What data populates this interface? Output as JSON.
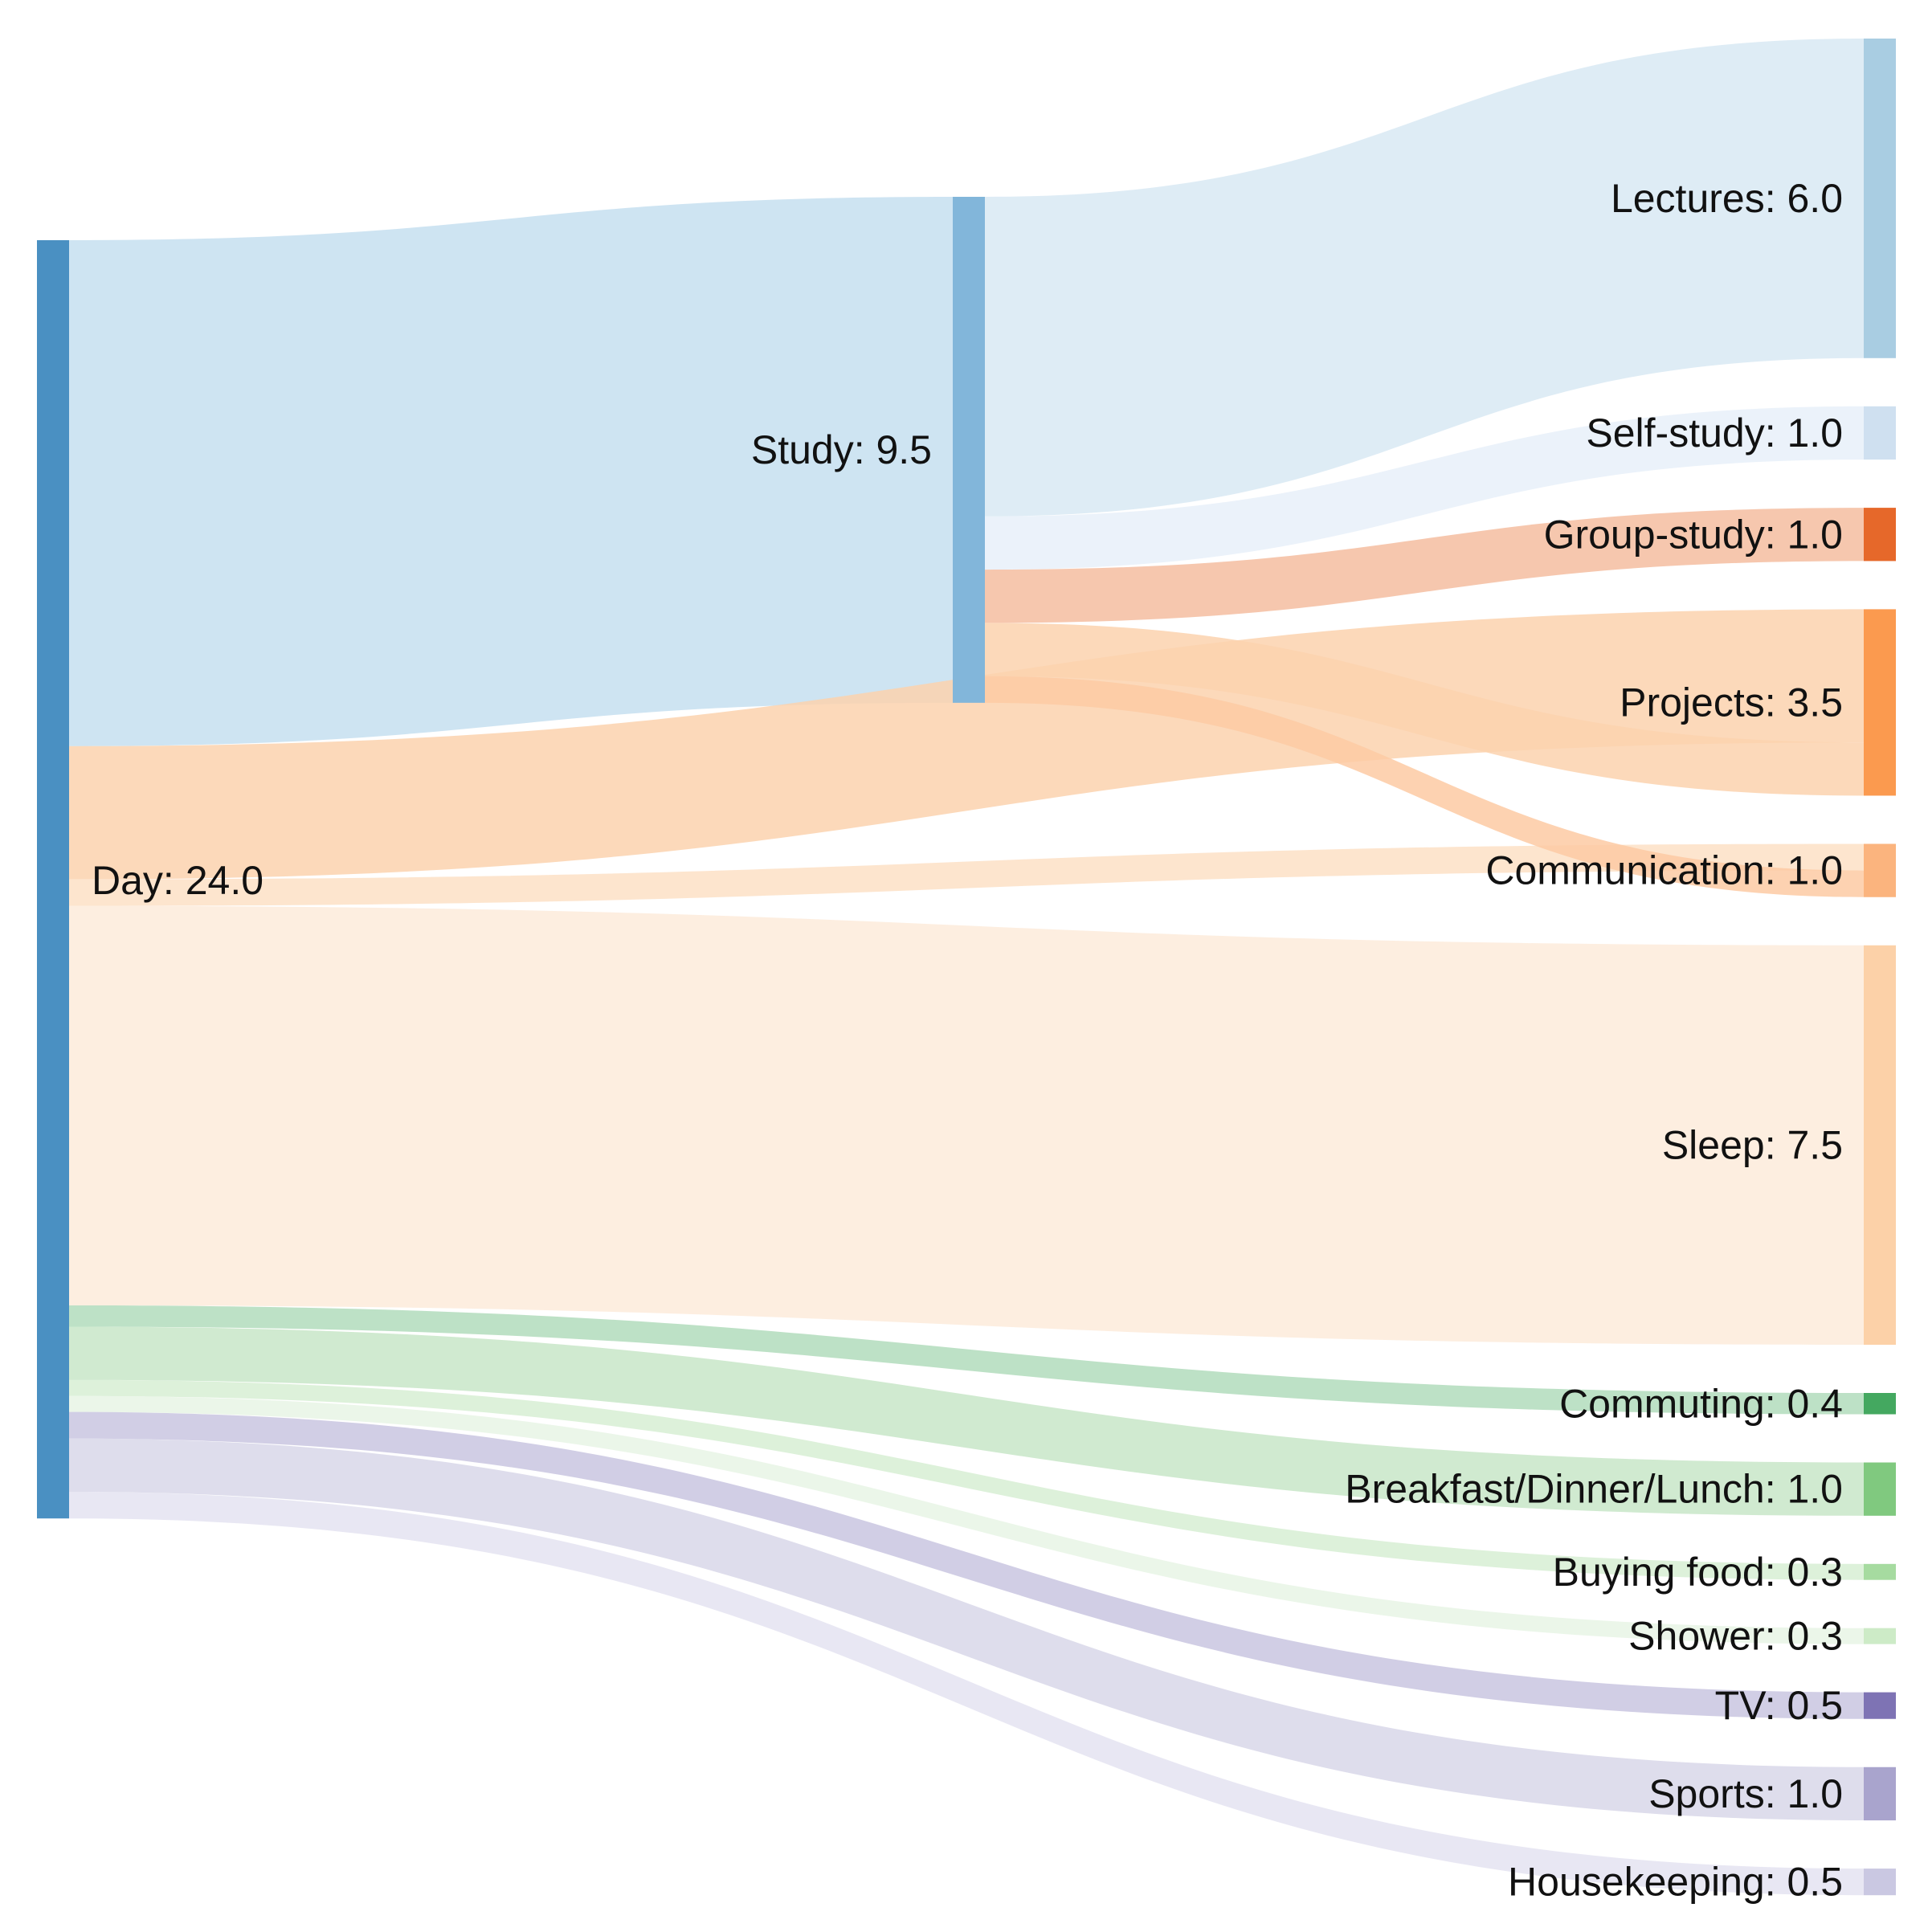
{
  "chart_data": {
    "type": "sankey",
    "nodes": [
      {
        "id": "day",
        "label": "Day: 24.0",
        "name": "Day",
        "value": 24.0,
        "column": 0,
        "color": "#4a90c2"
      },
      {
        "id": "study",
        "label": "Study: 9.5",
        "name": "Study",
        "value": 9.5,
        "column": 1,
        "color": "#82b6da"
      },
      {
        "id": "lectures",
        "label": "Lectures: 6.0",
        "name": "Lectures",
        "value": 6.0,
        "column": 2,
        "color": "#a9cde2"
      },
      {
        "id": "selfstudy",
        "label": "Self-study: 1.0",
        "name": "Self-study",
        "value": 1.0,
        "column": 2,
        "color": "#cfe0f0"
      },
      {
        "id": "groupstudy",
        "label": "Group-study: 1.0",
        "name": "Group-study",
        "value": 1.0,
        "column": 2,
        "color": "#e6682a"
      },
      {
        "id": "projects",
        "label": "Projects: 3.5",
        "name": "Projects",
        "value": 3.5,
        "column": 2,
        "color": "#fb9a4f"
      },
      {
        "id": "communication",
        "label": "Communication: 1.0",
        "name": "Communication",
        "value": 1.0,
        "column": 2,
        "color": "#fbb47e"
      },
      {
        "id": "sleep",
        "label": "Sleep: 7.5",
        "name": "Sleep",
        "value": 7.5,
        "column": 2,
        "color": "#fcd1a8"
      },
      {
        "id": "commuting",
        "label": "Commuting: 0.4",
        "name": "Commuting",
        "value": 0.4,
        "column": 2,
        "color": "#44a860"
      },
      {
        "id": "meals",
        "label": "Breakfast/Dinner/Lunch: 1.0",
        "name": "Breakfast/Dinner/Lunch",
        "value": 1.0,
        "column": 2,
        "color": "#80c97f"
      },
      {
        "id": "buyingfood",
        "label": "Buying food: 0.3",
        "name": "Buying food",
        "value": 0.3,
        "column": 2,
        "color": "#a6dba0"
      },
      {
        "id": "shower",
        "label": "Shower: 0.3",
        "name": "Shower",
        "value": 0.3,
        "column": 2,
        "color": "#cdebc7"
      },
      {
        "id": "tv",
        "label": "TV: 0.5",
        "name": "TV",
        "value": 0.5,
        "column": 2,
        "color": "#7e73b4"
      },
      {
        "id": "sports",
        "label": "Sports: 1.0",
        "name": "Sports",
        "value": 1.0,
        "column": 2,
        "color": "#a9a4cd"
      },
      {
        "id": "housekeeping",
        "label": "Housekeeping: 0.5",
        "name": "Housekeeping",
        "value": 0.5,
        "column": 2,
        "color": "#cac8e2"
      }
    ],
    "links": [
      {
        "source": "day",
        "target": "study",
        "value": 9.5,
        "color": "#c5dff0"
      },
      {
        "source": "day",
        "target": "projects",
        "value": 2.5,
        "color": "#fcd2ae"
      },
      {
        "source": "day",
        "target": "communication",
        "value": 0.5,
        "color": "#fde0c6"
      },
      {
        "source": "day",
        "target": "sleep",
        "value": 7.5,
        "color": "#fdebdb"
      },
      {
        "source": "day",
        "target": "commuting",
        "value": 0.4,
        "color": "#b1dcbc"
      },
      {
        "source": "day",
        "target": "meals",
        "value": 1.0,
        "color": "#c8e6c8"
      },
      {
        "source": "day",
        "target": "buyingfood",
        "value": 0.3,
        "color": "#d7efd4"
      },
      {
        "source": "day",
        "target": "shower",
        "value": 0.3,
        "color": "#e8f5e5"
      },
      {
        "source": "day",
        "target": "tv",
        "value": 0.5,
        "color": "#c9c5e0"
      },
      {
        "source": "day",
        "target": "sports",
        "value": 1.0,
        "color": "#d8d7e9"
      },
      {
        "source": "day",
        "target": "housekeeping",
        "value": 0.5,
        "color": "#e4e3f1"
      },
      {
        "source": "study",
        "target": "lectures",
        "value": 6.0,
        "color": "#d8e9f3"
      },
      {
        "source": "study",
        "target": "selfstudy",
        "value": 1.0,
        "color": "#e7f0f9"
      },
      {
        "source": "study",
        "target": "groupstudy",
        "value": 1.0,
        "color": "#f5bda0"
      },
      {
        "source": "study",
        "target": "projects",
        "value": 1.0,
        "color": "#fcd2ae"
      },
      {
        "source": "study",
        "target": "communication",
        "value": 0.5,
        "color": "#fdcaa3"
      }
    ]
  }
}
